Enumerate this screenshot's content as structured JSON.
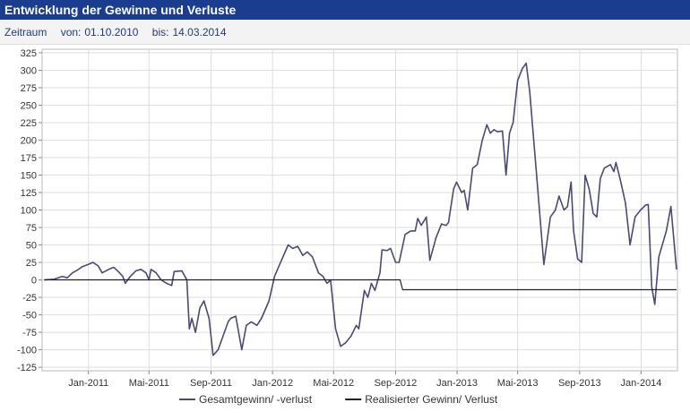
{
  "header": {
    "title": "Entwicklung der Gewinne und Verluste"
  },
  "period": {
    "label": "Zeitraum",
    "from_label": "von:",
    "from_value": "01.10.2010",
    "to_label": "bis:",
    "to_value": "14.03.2014"
  },
  "colors": {
    "header_bg": "#1a3d8f",
    "series_total": "#4a4a78",
    "series_realized": "#222222",
    "grid": "#dddddd"
  },
  "chart_data": {
    "type": "line",
    "xlabel": "",
    "ylabel": "",
    "x_range": [
      "2010-10-01",
      "2014-03-14"
    ],
    "ylim": [
      -130,
      330
    ],
    "yticks": [
      -125,
      -100,
      -75,
      -50,
      -25,
      0,
      25,
      50,
      75,
      100,
      125,
      150,
      175,
      200,
      225,
      250,
      275,
      300,
      325
    ],
    "xticks": [
      {
        "date": "2011-01-01",
        "label": "Jan-2011"
      },
      {
        "date": "2011-05-01",
        "label": "Mai-2011"
      },
      {
        "date": "2011-09-01",
        "label": "Sep-2011"
      },
      {
        "date": "2012-01-01",
        "label": "Jan-2012"
      },
      {
        "date": "2012-05-01",
        "label": "Mai-2012"
      },
      {
        "date": "2012-09-01",
        "label": "Sep-2012"
      },
      {
        "date": "2013-01-01",
        "label": "Jan-2013"
      },
      {
        "date": "2013-05-01",
        "label": "Mai-2013"
      },
      {
        "date": "2013-09-01",
        "label": "Sep-2013"
      },
      {
        "date": "2014-01-01",
        "label": "Jan-2014"
      }
    ],
    "grid": true,
    "legend_position": "bottom",
    "series": [
      {
        "name": "Gesamtgewinn/ -verlust",
        "points": [
          [
            "2010-10-05",
            0
          ],
          [
            "2010-10-25",
            1
          ],
          [
            "2010-11-10",
            5
          ],
          [
            "2010-11-20",
            3
          ],
          [
            "2010-11-30",
            10
          ],
          [
            "2010-12-10",
            14
          ],
          [
            "2010-12-20",
            19
          ],
          [
            "2010-12-31",
            22
          ],
          [
            "2011-01-10",
            25
          ],
          [
            "2011-01-20",
            20
          ],
          [
            "2011-01-28",
            10
          ],
          [
            "2011-02-10",
            15
          ],
          [
            "2011-02-20",
            18
          ],
          [
            "2011-03-01",
            12
          ],
          [
            "2011-03-10",
            5
          ],
          [
            "2011-03-15",
            -5
          ],
          [
            "2011-03-25",
            5
          ],
          [
            "2011-04-05",
            13
          ],
          [
            "2011-04-15",
            15
          ],
          [
            "2011-04-25",
            10
          ],
          [
            "2011-05-01",
            0
          ],
          [
            "2011-05-05",
            15
          ],
          [
            "2011-05-15",
            10
          ],
          [
            "2011-05-25",
            0
          ],
          [
            "2011-06-05",
            -5
          ],
          [
            "2011-06-15",
            -8
          ],
          [
            "2011-06-20",
            12
          ],
          [
            "2011-07-05",
            13
          ],
          [
            "2011-07-15",
            0
          ],
          [
            "2011-07-20",
            -70
          ],
          [
            "2011-07-25",
            -55
          ],
          [
            "2011-08-01",
            -75
          ],
          [
            "2011-08-10",
            -40
          ],
          [
            "2011-08-18",
            -30
          ],
          [
            "2011-08-28",
            -55
          ],
          [
            "2011-09-05",
            -108
          ],
          [
            "2011-09-15",
            -100
          ],
          [
            "2011-09-25",
            -80
          ],
          [
            "2011-10-05",
            -60
          ],
          [
            "2011-10-10",
            -55
          ],
          [
            "2011-10-20",
            -52
          ],
          [
            "2011-11-01",
            -100
          ],
          [
            "2011-11-10",
            -65
          ],
          [
            "2011-11-20",
            -60
          ],
          [
            "2011-12-01",
            -65
          ],
          [
            "2011-12-10",
            -55
          ],
          [
            "2011-12-25",
            -30
          ],
          [
            "2012-01-05",
            5
          ],
          [
            "2012-01-20",
            30
          ],
          [
            "2012-02-01",
            50
          ],
          [
            "2012-02-10",
            45
          ],
          [
            "2012-02-20",
            48
          ],
          [
            "2012-03-01",
            35
          ],
          [
            "2012-03-10",
            40
          ],
          [
            "2012-03-20",
            33
          ],
          [
            "2012-04-01",
            10
          ],
          [
            "2012-04-10",
            5
          ],
          [
            "2012-04-18",
            -5
          ],
          [
            "2012-04-25",
            0
          ],
          [
            "2012-05-05",
            -70
          ],
          [
            "2012-05-15",
            -95
          ],
          [
            "2012-05-25",
            -90
          ],
          [
            "2012-06-05",
            -80
          ],
          [
            "2012-06-15",
            -65
          ],
          [
            "2012-06-20",
            -70
          ],
          [
            "2012-07-01",
            -15
          ],
          [
            "2012-07-08",
            -25
          ],
          [
            "2012-07-15",
            -5
          ],
          [
            "2012-07-22",
            -15
          ],
          [
            "2012-08-01",
            10
          ],
          [
            "2012-08-05",
            43
          ],
          [
            "2012-08-15",
            42
          ],
          [
            "2012-08-22",
            45
          ],
          [
            "2012-09-01",
            25
          ],
          [
            "2012-09-08",
            25
          ],
          [
            "2012-09-20",
            65
          ],
          [
            "2012-10-01",
            70
          ],
          [
            "2012-10-10",
            70
          ],
          [
            "2012-10-15",
            88
          ],
          [
            "2012-10-22",
            78
          ],
          [
            "2012-11-01",
            90
          ],
          [
            "2012-11-08",
            28
          ],
          [
            "2012-11-20",
            60
          ],
          [
            "2012-12-01",
            80
          ],
          [
            "2012-12-10",
            78
          ],
          [
            "2012-12-15",
            82
          ],
          [
            "2012-12-25",
            130
          ],
          [
            "2012-12-31",
            140
          ],
          [
            "2013-01-10",
            125
          ],
          [
            "2013-01-15",
            128
          ],
          [
            "2013-01-22",
            100
          ],
          [
            "2013-02-01",
            160
          ],
          [
            "2013-02-10",
            165
          ],
          [
            "2013-02-20",
            200
          ],
          [
            "2013-03-01",
            222
          ],
          [
            "2013-03-08",
            210
          ],
          [
            "2013-03-15",
            215
          ],
          [
            "2013-03-22",
            212
          ],
          [
            "2013-04-01",
            213
          ],
          [
            "2013-04-08",
            150
          ],
          [
            "2013-04-15",
            210
          ],
          [
            "2013-04-22",
            225
          ],
          [
            "2013-05-01",
            285
          ],
          [
            "2013-05-10",
            302
          ],
          [
            "2013-05-18",
            310
          ],
          [
            "2013-05-25",
            270
          ],
          [
            "2013-06-10",
            130
          ],
          [
            "2013-06-22",
            22
          ],
          [
            "2013-07-05",
            90
          ],
          [
            "2013-07-15",
            100
          ],
          [
            "2013-07-22",
            120
          ],
          [
            "2013-08-01",
            100
          ],
          [
            "2013-08-08",
            105
          ],
          [
            "2013-08-15",
            140
          ],
          [
            "2013-08-20",
            70
          ],
          [
            "2013-08-28",
            30
          ],
          [
            "2013-09-05",
            25
          ],
          [
            "2013-09-12",
            150
          ],
          [
            "2013-09-20",
            130
          ],
          [
            "2013-09-28",
            95
          ],
          [
            "2013-10-05",
            90
          ],
          [
            "2013-10-12",
            145
          ],
          [
            "2013-10-20",
            160
          ],
          [
            "2013-11-01",
            165
          ],
          [
            "2013-11-08",
            155
          ],
          [
            "2013-11-12",
            168
          ],
          [
            "2013-11-20",
            145
          ],
          [
            "2013-12-01",
            110
          ],
          [
            "2013-12-10",
            50
          ],
          [
            "2013-12-20",
            90
          ],
          [
            "2013-12-31",
            100
          ],
          [
            "2014-01-10",
            107
          ],
          [
            "2014-01-15",
            108
          ],
          [
            "2014-01-22",
            -10
          ],
          [
            "2014-01-28",
            -35
          ],
          [
            "2014-02-05",
            33
          ],
          [
            "2014-02-20",
            70
          ],
          [
            "2014-03-01",
            105
          ],
          [
            "2014-03-12",
            15
          ]
        ]
      },
      {
        "name": "Realisierter Gewinn/ Verlust",
        "points": [
          [
            "2010-10-05",
            0
          ],
          [
            "2012-09-10",
            0
          ],
          [
            "2012-09-15",
            -14
          ],
          [
            "2014-03-12",
            -14
          ]
        ]
      }
    ]
  }
}
